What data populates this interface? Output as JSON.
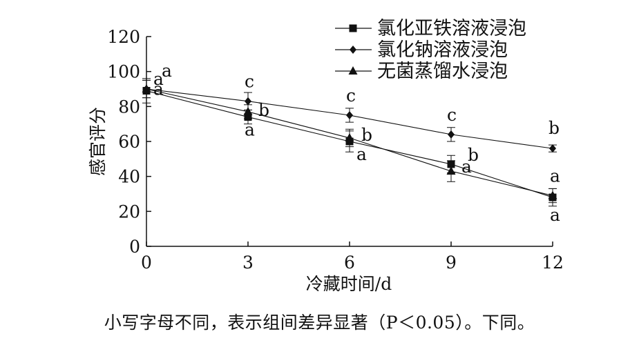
{
  "chart_data": {
    "type": "line",
    "title": "",
    "xlabel": "冷藏时间/d",
    "ylabel": "感官评分",
    "x": [
      0,
      3,
      6,
      9,
      12
    ],
    "xlim": [
      0,
      12
    ],
    "ylim": [
      0,
      120
    ],
    "xticks": [
      "0",
      "3",
      "6",
      "9",
      "12"
    ],
    "yticks": [
      "0",
      "20",
      "40",
      "60",
      "80",
      "100",
      "120"
    ],
    "grid": false,
    "legend_position": "top-right",
    "series": [
      {
        "name": "氯化亚铁溶液浸泡",
        "marker": "square",
        "values": [
          89,
          74,
          60,
          47,
          28
        ],
        "errors": [
          7,
          4,
          6,
          5,
          5
        ],
        "labels": [
          "a",
          "a",
          "a",
          "b",
          "a"
        ]
      },
      {
        "name": "氯化钠溶液浸泡",
        "marker": "diamond",
        "values": [
          90,
          83,
          75,
          64,
          56
        ],
        "errors": [
          5,
          5,
          4,
          4,
          2
        ],
        "labels": [
          "a",
          "c",
          "c",
          "c",
          "b"
        ]
      },
      {
        "name": "无菌蒸馏水浸泡",
        "marker": "triangle",
        "values": [
          90,
          77,
          62,
          43,
          29
        ],
        "errors": [
          5,
          4,
          5,
          6,
          4
        ],
        "labels": [
          "a",
          "b",
          "b",
          "a",
          "a"
        ]
      }
    ]
  },
  "caption": "小写字母不同，表示组间差异显著（P＜0.05）。下同。"
}
